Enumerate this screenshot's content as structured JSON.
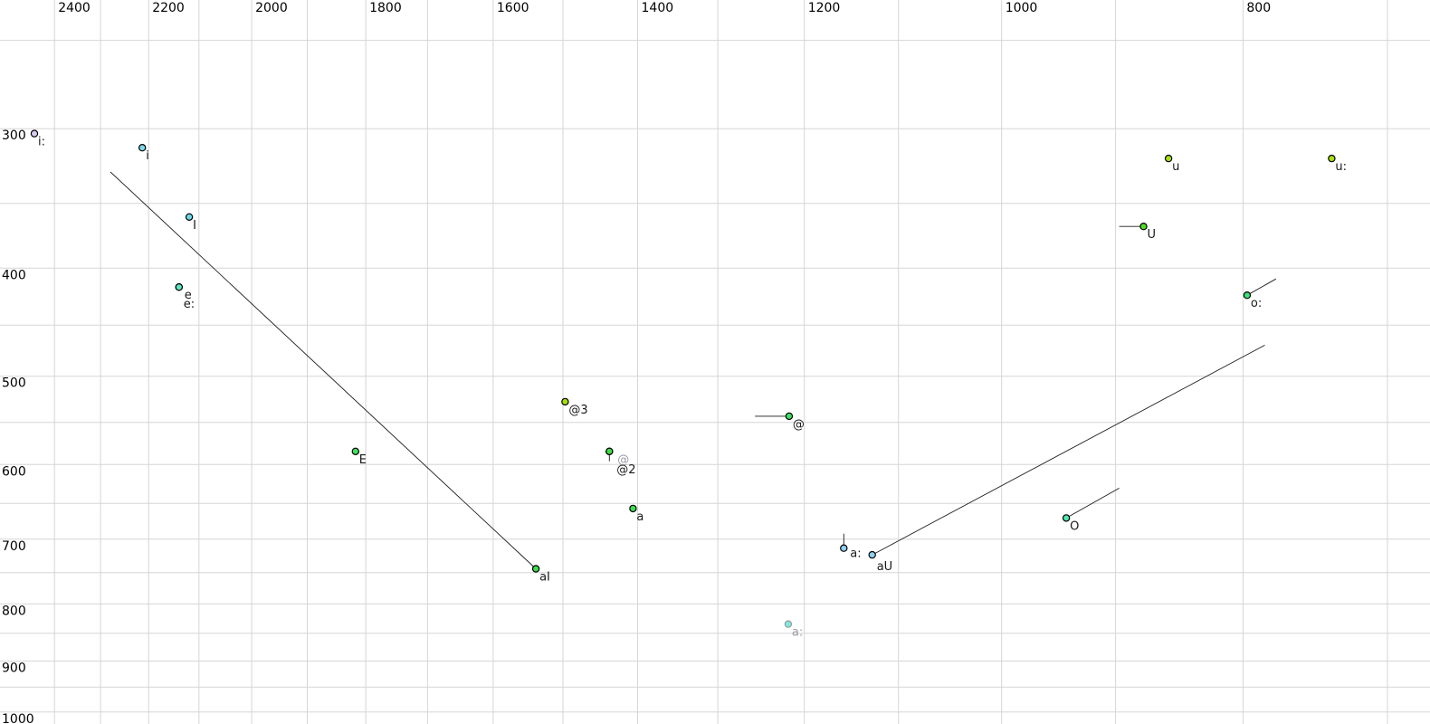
{
  "chart_data": {
    "type": "scatter",
    "title": "",
    "xlabel": "",
    "ylabel": "",
    "x_axis": {
      "scale": "log",
      "reversed": true,
      "range_hz": [
        2524,
        673
      ],
      "labeled_ticks": [
        2400,
        2200,
        2000,
        1800,
        1600,
        1400,
        1200,
        1000,
        800
      ],
      "gridlines_hz": [
        2400,
        2300,
        2200,
        2100,
        2000,
        1900,
        1800,
        1700,
        1600,
        1500,
        1400,
        1300,
        1200,
        1100,
        1000,
        900,
        800,
        700
      ]
    },
    "y_axis": {
      "scale": "log",
      "direction": "down",
      "range_hz": [
        230,
        1025
      ],
      "labeled_ticks": [
        300,
        400,
        500,
        600,
        700,
        800,
        900,
        1000
      ],
      "gridlines_hz": [
        250,
        300,
        350,
        400,
        450,
        500,
        550,
        600,
        650,
        700,
        750,
        800,
        850,
        900,
        950,
        1000
      ]
    },
    "grid_color": "#d6d6d6",
    "tick_label_color": "#000000",
    "point_style": {
      "radius": 3.6,
      "default_stroke": "#000000",
      "default_label_color": "#1a1a1a",
      "trajectory_color": "#1c1c1c"
    },
    "points": [
      {
        "label": "i:",
        "f2": 2445,
        "f1": 303,
        "fill": "#d8ccf2"
      },
      {
        "label": "i",
        "f2": 2213,
        "f1": 312,
        "fill": "#7fd8ea"
      },
      {
        "label": "I",
        "f2": 2119,
        "f1": 360,
        "fill": "#6ed8e8"
      },
      {
        "label": "e",
        "f2": 2139,
        "f1": 416,
        "fill": "#5ee8c2",
        "label_offset": [
          6,
          13
        ]
      },
      {
        "label": "e:",
        "f2": 2139,
        "f1": 416,
        "fill": "#5ee8c2",
        "label_offset": [
          5,
          23
        ]
      },
      {
        "label": "E",
        "f2": 1817,
        "f1": 584,
        "fill": "#43e05e"
      },
      {
        "label": "aI",
        "f2": 1538,
        "f1": 744,
        "fill": "#3cdc4e",
        "tail_to": [
          2279,
          328
        ]
      },
      {
        "label": "@3",
        "f2": 1497,
        "f1": 527,
        "fill": "#a6e00e"
      },
      {
        "label": "@",
        "f2": 1437,
        "f1": 584,
        "fill": "#3edd44",
        "label_color": "#9a9aa4",
        "label_offset": [
          9,
          13
        ],
        "state": "grayed-label"
      },
      {
        "label": "@2",
        "f2": 1437,
        "f1": 584,
        "fill": "#3edd44",
        "tail_to": [
          1437,
          596
        ],
        "label_offset": [
          8,
          24
        ]
      },
      {
        "label": "@",
        "f2": 1217,
        "f1": 543,
        "fill": "#3fe062",
        "tail_to": [
          1256,
          543
        ]
      },
      {
        "label": "a",
        "f2": 1406,
        "f1": 657,
        "fill": "#3edd50"
      },
      {
        "label": "a:",
        "f2": 1157,
        "f1": 713,
        "fill": "#90d0f2",
        "tail_to": [
          1157,
          692
        ],
        "label_offset": [
          7,
          10
        ]
      },
      {
        "label": "aU",
        "f2": 1127,
        "f1": 723,
        "fill": "#90d0f2",
        "tail_to": [
          784,
          469
        ],
        "label_offset": [
          5,
          17
        ]
      },
      {
        "label": "a:",
        "f2": 1218,
        "f1": 834,
        "fill": "#7fe9e1",
        "stroke": "#9a9a9a",
        "label_color": "#9a9aa4",
        "state": "grayed"
      },
      {
        "label": "O",
        "f2": 942,
        "f1": 670,
        "fill": "#50e6ac",
        "tail_to": [
          897,
          630
        ]
      },
      {
        "label": "o:",
        "f2": 797,
        "f1": 423,
        "fill": "#3ee07b",
        "tail_to": [
          776,
          409
        ]
      },
      {
        "label": "U",
        "f2": 877,
        "f1": 367,
        "fill": "#4fdd24",
        "tail_to": [
          897,
          367
        ]
      },
      {
        "label": "u",
        "f2": 857,
        "f1": 319,
        "fill": "#a6e00e"
      },
      {
        "label": "u:",
        "f2": 737,
        "f1": 319,
        "fill": "#a6e00e"
      }
    ]
  }
}
